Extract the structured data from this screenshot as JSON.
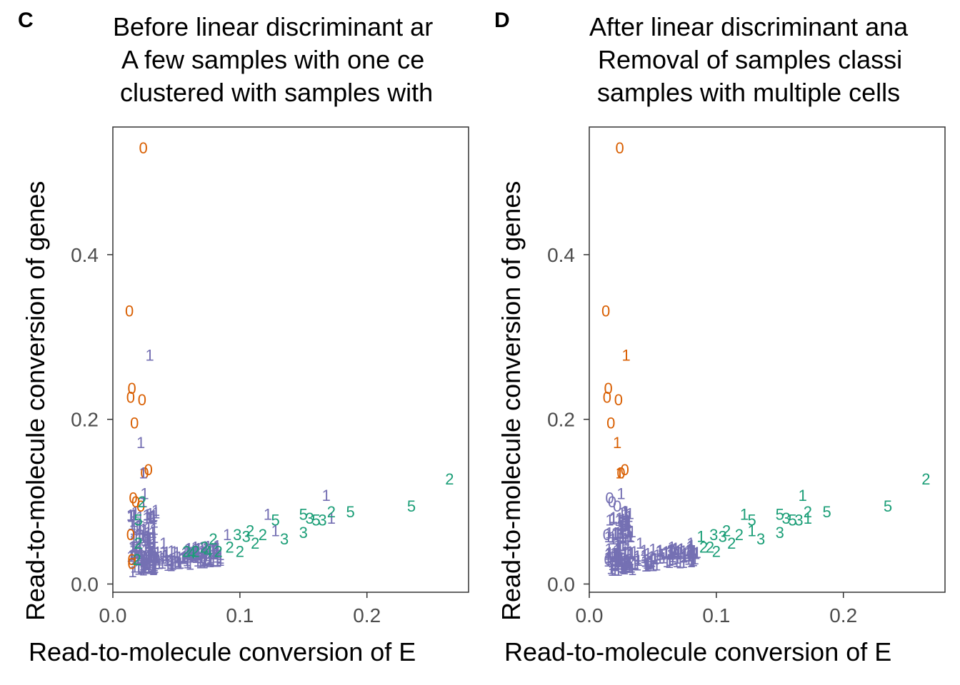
{
  "colors": {
    "zero": "#d95f02",
    "one": "#7570b3",
    "many": "#1b9e77",
    "axis": "#333333",
    "tick_text": "#4d4d4d"
  },
  "chart_data": [
    {
      "type": "scatter",
      "panel_tag": "C",
      "title_lines": [
        "Before linear discriminant ar",
        "A few samples with one ce",
        "clustered with samples with"
      ],
      "xlabel": "Read-to-molecule conversion of E",
      "ylabel": "Read-to-molecule conversion of genes",
      "xlim": [
        0,
        0.28
      ],
      "ylim": [
        -0.01,
        0.555
      ],
      "x_ticks": [
        "0.0",
        "0.1",
        "0.2"
      ],
      "y_ticks": [
        "0.0",
        "0.2",
        "0.4"
      ],
      "grid": false,
      "point_text_is_label": true,
      "points": [
        {
          "x": 0.024,
          "y": 0.53,
          "label": "0",
          "color": "#d95f02"
        },
        {
          "x": 0.013,
          "y": 0.332,
          "label": "0",
          "color": "#d95f02"
        },
        {
          "x": 0.015,
          "y": 0.238,
          "label": "0",
          "color": "#d95f02"
        },
        {
          "x": 0.014,
          "y": 0.227,
          "label": "0",
          "color": "#d95f02"
        },
        {
          "x": 0.023,
          "y": 0.224,
          "label": "0",
          "color": "#d95f02"
        },
        {
          "x": 0.017,
          "y": 0.196,
          "label": "0",
          "color": "#d95f02"
        },
        {
          "x": 0.025,
          "y": 0.135,
          "label": "0",
          "color": "#d95f02"
        },
        {
          "x": 0.028,
          "y": 0.139,
          "label": "0",
          "color": "#d95f02"
        },
        {
          "x": 0.016,
          "y": 0.105,
          "label": "0",
          "color": "#d95f02"
        },
        {
          "x": 0.018,
          "y": 0.1,
          "label": "0",
          "color": "#d95f02"
        },
        {
          "x": 0.022,
          "y": 0.095,
          "label": "0",
          "color": "#d95f02"
        },
        {
          "x": 0.014,
          "y": 0.06,
          "label": "0",
          "color": "#d95f02"
        },
        {
          "x": 0.015,
          "y": 0.03,
          "label": "0",
          "color": "#d95f02"
        },
        {
          "x": 0.015,
          "y": 0.025,
          "label": "0",
          "color": "#d95f02"
        },
        {
          "x": 0.029,
          "y": 0.278,
          "label": "1",
          "color": "#7570b3"
        },
        {
          "x": 0.022,
          "y": 0.172,
          "label": "1",
          "color": "#7570b3"
        },
        {
          "x": 0.024,
          "y": 0.135,
          "label": "1",
          "color": "#7570b3"
        },
        {
          "x": 0.025,
          "y": 0.11,
          "label": "1",
          "color": "#7570b3"
        },
        {
          "x": 0.024,
          "y": 0.1,
          "label": "1",
          "color": "#7570b3"
        },
        {
          "x": 0.016,
          "y": 0.045,
          "label": "1",
          "color": "#7570b3"
        },
        {
          "x": 0.04,
          "y": 0.05,
          "label": "1",
          "color": "#7570b3"
        },
        {
          "x": 0.065,
          "y": 0.045,
          "label": "1",
          "color": "#7570b3"
        },
        {
          "x": 0.09,
          "y": 0.06,
          "label": "1",
          "color": "#7570b3"
        },
        {
          "x": 0.122,
          "y": 0.085,
          "label": "1",
          "color": "#7570b3"
        },
        {
          "x": 0.128,
          "y": 0.065,
          "label": "1",
          "color": "#7570b3"
        },
        {
          "x": 0.168,
          "y": 0.108,
          "label": "1",
          "color": "#7570b3"
        },
        {
          "x": 0.172,
          "y": 0.08,
          "label": "1",
          "color": "#7570b3"
        },
        {
          "x": 0.02,
          "y": 0.05,
          "label": "2",
          "color": "#1b9e77"
        },
        {
          "x": 0.019,
          "y": 0.03,
          "label": "2",
          "color": "#1b9e77"
        },
        {
          "x": 0.023,
          "y": 0.1,
          "label": "2",
          "color": "#1b9e77"
        },
        {
          "x": 0.058,
          "y": 0.04,
          "label": "2",
          "color": "#1b9e77"
        },
        {
          "x": 0.065,
          "y": 0.04,
          "label": "2",
          "color": "#1b9e77"
        },
        {
          "x": 0.072,
          "y": 0.045,
          "label": "2",
          "color": "#1b9e77"
        },
        {
          "x": 0.079,
          "y": 0.055,
          "label": "2",
          "color": "#1b9e77"
        },
        {
          "x": 0.083,
          "y": 0.04,
          "label": "2",
          "color": "#1b9e77"
        },
        {
          "x": 0.092,
          "y": 0.045,
          "label": "2",
          "color": "#1b9e77"
        },
        {
          "x": 0.1,
          "y": 0.04,
          "label": "2",
          "color": "#1b9e77"
        },
        {
          "x": 0.108,
          "y": 0.065,
          "label": "2",
          "color": "#1b9e77"
        },
        {
          "x": 0.112,
          "y": 0.05,
          "label": "2",
          "color": "#1b9e77"
        },
        {
          "x": 0.118,
          "y": 0.06,
          "label": "2",
          "color": "#1b9e77"
        },
        {
          "x": 0.172,
          "y": 0.088,
          "label": "2",
          "color": "#1b9e77"
        },
        {
          "x": 0.265,
          "y": 0.128,
          "label": "2",
          "color": "#1b9e77"
        },
        {
          "x": 0.098,
          "y": 0.06,
          "label": "3",
          "color": "#1b9e77"
        },
        {
          "x": 0.105,
          "y": 0.058,
          "label": "3",
          "color": "#1b9e77"
        },
        {
          "x": 0.135,
          "y": 0.055,
          "label": "3",
          "color": "#1b9e77"
        },
        {
          "x": 0.15,
          "y": 0.063,
          "label": "3",
          "color": "#1b9e77"
        },
        {
          "x": 0.155,
          "y": 0.08,
          "label": "3",
          "color": "#1b9e77"
        },
        {
          "x": 0.165,
          "y": 0.078,
          "label": "3",
          "color": "#1b9e77"
        },
        {
          "x": 0.128,
          "y": 0.078,
          "label": "5",
          "color": "#1b9e77"
        },
        {
          "x": 0.15,
          "y": 0.085,
          "label": "5",
          "color": "#1b9e77"
        },
        {
          "x": 0.16,
          "y": 0.078,
          "label": "5",
          "color": "#1b9e77"
        },
        {
          "x": 0.187,
          "y": 0.088,
          "label": "5",
          "color": "#1b9e77"
        },
        {
          "x": 0.235,
          "y": 0.095,
          "label": "5",
          "color": "#1b9e77"
        },
        {
          "x": 0.02,
          "y": 0.078,
          "label": "5",
          "color": "#1b9e77"
        },
        {
          "x": 0.062,
          "y": 0.038,
          "label": "4",
          "color": "#1b9e77"
        },
        {
          "x": 0.075,
          "y": 0.04,
          "label": "4",
          "color": "#1b9e77"
        }
      ]
    },
    {
      "type": "scatter",
      "panel_tag": "D",
      "title_lines": [
        "After linear discriminant ana",
        "Removal of samples classi",
        "samples with multiple cells"
      ],
      "xlabel": "Read-to-molecule conversion of E",
      "ylabel": "Read-to-molecule conversion of genes",
      "xlim": [
        0,
        0.28
      ],
      "ylim": [
        -0.01,
        0.555
      ],
      "x_ticks": [
        "0.0",
        "0.1",
        "0.2"
      ],
      "y_ticks": [
        "0.0",
        "0.2",
        "0.4"
      ],
      "grid": false,
      "point_text_is_label": true,
      "points": [
        {
          "x": 0.024,
          "y": 0.53,
          "label": "0",
          "color": "#d95f02"
        },
        {
          "x": 0.013,
          "y": 0.332,
          "label": "0",
          "color": "#d95f02"
        },
        {
          "x": 0.029,
          "y": 0.278,
          "label": "1",
          "color": "#d95f02"
        },
        {
          "x": 0.015,
          "y": 0.238,
          "label": "0",
          "color": "#d95f02"
        },
        {
          "x": 0.014,
          "y": 0.227,
          "label": "0",
          "color": "#d95f02"
        },
        {
          "x": 0.023,
          "y": 0.224,
          "label": "0",
          "color": "#d95f02"
        },
        {
          "x": 0.017,
          "y": 0.196,
          "label": "0",
          "color": "#d95f02"
        },
        {
          "x": 0.022,
          "y": 0.172,
          "label": "1",
          "color": "#d95f02"
        },
        {
          "x": 0.024,
          "y": 0.135,
          "label": "1",
          "color": "#d95f02"
        },
        {
          "x": 0.025,
          "y": 0.135,
          "label": "0",
          "color": "#d95f02"
        },
        {
          "x": 0.028,
          "y": 0.139,
          "label": "0",
          "color": "#d95f02"
        },
        {
          "x": 0.025,
          "y": 0.11,
          "label": "1",
          "color": "#7570b3"
        },
        {
          "x": 0.016,
          "y": 0.105,
          "label": "0",
          "color": "#7570b3"
        },
        {
          "x": 0.018,
          "y": 0.1,
          "label": "0",
          "color": "#7570b3"
        },
        {
          "x": 0.022,
          "y": 0.095,
          "label": "0",
          "color": "#7570b3"
        },
        {
          "x": 0.014,
          "y": 0.06,
          "label": "0",
          "color": "#7570b3"
        },
        {
          "x": 0.015,
          "y": 0.03,
          "label": "0",
          "color": "#7570b3"
        },
        {
          "x": 0.04,
          "y": 0.05,
          "label": "1",
          "color": "#7570b3"
        },
        {
          "x": 0.065,
          "y": 0.045,
          "label": "1",
          "color": "#7570b3"
        },
        {
          "x": 0.08,
          "y": 0.05,
          "label": "1",
          "color": "#7570b3"
        },
        {
          "x": 0.078,
          "y": 0.035,
          "label": "4",
          "color": "#7570b3"
        },
        {
          "x": 0.088,
          "y": 0.058,
          "label": "1",
          "color": "#1b9e77"
        },
        {
          "x": 0.122,
          "y": 0.085,
          "label": "1",
          "color": "#1b9e77"
        },
        {
          "x": 0.128,
          "y": 0.065,
          "label": "1",
          "color": "#1b9e77"
        },
        {
          "x": 0.168,
          "y": 0.108,
          "label": "1",
          "color": "#1b9e77"
        },
        {
          "x": 0.172,
          "y": 0.08,
          "label": "1",
          "color": "#1b9e77"
        },
        {
          "x": 0.09,
          "y": 0.045,
          "label": "2",
          "color": "#1b9e77"
        },
        {
          "x": 0.095,
          "y": 0.045,
          "label": "2",
          "color": "#1b9e77"
        },
        {
          "x": 0.1,
          "y": 0.04,
          "label": "2",
          "color": "#1b9e77"
        },
        {
          "x": 0.108,
          "y": 0.065,
          "label": "2",
          "color": "#1b9e77"
        },
        {
          "x": 0.112,
          "y": 0.05,
          "label": "2",
          "color": "#1b9e77"
        },
        {
          "x": 0.118,
          "y": 0.06,
          "label": "2",
          "color": "#1b9e77"
        },
        {
          "x": 0.172,
          "y": 0.088,
          "label": "2",
          "color": "#1b9e77"
        },
        {
          "x": 0.265,
          "y": 0.128,
          "label": "2",
          "color": "#1b9e77"
        },
        {
          "x": 0.098,
          "y": 0.06,
          "label": "3",
          "color": "#1b9e77"
        },
        {
          "x": 0.105,
          "y": 0.058,
          "label": "3",
          "color": "#1b9e77"
        },
        {
          "x": 0.135,
          "y": 0.055,
          "label": "3",
          "color": "#1b9e77"
        },
        {
          "x": 0.15,
          "y": 0.063,
          "label": "3",
          "color": "#1b9e77"
        },
        {
          "x": 0.155,
          "y": 0.08,
          "label": "3",
          "color": "#1b9e77"
        },
        {
          "x": 0.165,
          "y": 0.078,
          "label": "3",
          "color": "#1b9e77"
        },
        {
          "x": 0.128,
          "y": 0.078,
          "label": "5",
          "color": "#1b9e77"
        },
        {
          "x": 0.15,
          "y": 0.085,
          "label": "5",
          "color": "#1b9e77"
        },
        {
          "x": 0.16,
          "y": 0.078,
          "label": "5",
          "color": "#1b9e77"
        },
        {
          "x": 0.187,
          "y": 0.088,
          "label": "5",
          "color": "#1b9e77"
        },
        {
          "x": 0.235,
          "y": 0.095,
          "label": "5",
          "color": "#1b9e77"
        }
      ]
    }
  ]
}
